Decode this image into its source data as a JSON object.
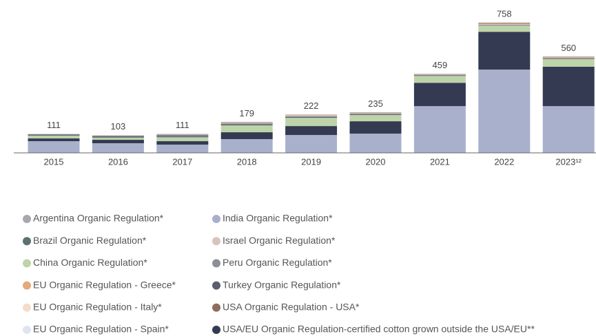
{
  "chart_data": {
    "type": "stacked_bar",
    "categories": [
      "2015",
      "2016",
      "2017",
      "2018",
      "2019",
      "2020",
      "2021",
      "2022",
      "2023¹²"
    ],
    "totals": [
      111,
      103,
      111,
      179,
      222,
      235,
      459,
      758,
      560
    ],
    "ylim": [
      0,
      800
    ],
    "series": [
      {
        "name": "Argentina Organic Regulation*",
        "color": "#a8a9ae",
        "values": [
          0,
          0,
          2,
          0,
          0,
          0,
          0,
          0,
          0
        ]
      },
      {
        "name": "Brazil Organic Regulation*",
        "color": "#5a7370",
        "values": [
          2,
          3,
          2,
          0,
          0,
          0,
          0,
          0,
          0
        ]
      },
      {
        "name": "China Organic Regulation*",
        "color": "#bcd4a8",
        "values": [
          16,
          12,
          22,
          40,
          48,
          36,
          40,
          36,
          44
        ]
      },
      {
        "name": "EU Organic Regulation - Greece*",
        "color": "#e8a878",
        "values": [
          0,
          0,
          0,
          0,
          2,
          0,
          0,
          2,
          2
        ]
      },
      {
        "name": "EU Organic Regulation - Italy*",
        "color": "#f5dcc8",
        "values": [
          0,
          0,
          0,
          0,
          0,
          0,
          0,
          0,
          0
        ]
      },
      {
        "name": "EU Organic Regulation - Spain*",
        "color": "#dfe4ef",
        "values": [
          0,
          0,
          0,
          0,
          0,
          0,
          0,
          0,
          0
        ]
      },
      {
        "name": "India Organic Regulation*",
        "color": "#a9b0cc",
        "values": [
          68,
          56,
          48,
          80,
          104,
          112,
          272,
          485,
          272
        ]
      },
      {
        "name": "Israel Organic Regulation*",
        "color": "#d7c4bc",
        "values": [
          2,
          3,
          4,
          4,
          4,
          3,
          2,
          5,
          2
        ]
      },
      {
        "name": "Peru Organic Regulation*",
        "color": "#8c8f99",
        "values": [
          3,
          4,
          6,
          6,
          5,
          5,
          3,
          4,
          4
        ]
      },
      {
        "name": "Turkey Organic Regulation*",
        "color": "#5b5e70",
        "values": [
          4,
          5,
          7,
          6,
          5,
          4,
          3,
          2,
          3
        ]
      },
      {
        "name": "USA Organic Regulation - USA*",
        "color": "#8d6e5e",
        "values": [
          0,
          0,
          0,
          3,
          2,
          3,
          3,
          4,
          3
        ]
      },
      {
        "name": "USA/EU Organic Regulation-certified cotton grown outside the USA/EU**",
        "color": "#333a52",
        "values": [
          16,
          20,
          20,
          40,
          52,
          72,
          136,
          220,
          230
        ]
      }
    ]
  }
}
